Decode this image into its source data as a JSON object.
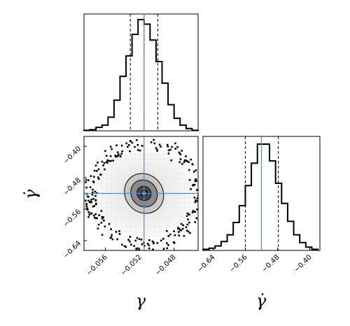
{
  "chart_data": [
    {
      "panel": "gamma-histogram",
      "type": "histogram",
      "xlim": [
        -0.0585,
        -0.0452
      ],
      "median": -0.0515,
      "quantile_16": -0.0531,
      "quantile_84": -0.0499,
      "truth": -0.0515,
      "bins": {
        "edges": [
          -0.0585,
          -0.0578,
          -0.0571,
          -0.0564,
          -0.0557,
          -0.055,
          -0.0543,
          -0.0536,
          -0.0529,
          -0.0522,
          -0.0515,
          -0.0508,
          -0.0501,
          -0.0494,
          -0.0487,
          -0.048,
          -0.0473,
          -0.0466,
          -0.0459,
          -0.0452
        ],
        "counts": [
          0.5,
          1,
          3,
          5,
          12,
          27,
          48,
          66,
          85,
          98,
          94,
          80,
          61,
          42,
          23,
          11,
          5,
          2,
          0.5
        ]
      }
    },
    {
      "panel": "gamma-gammadot-2d",
      "type": "heatmap",
      "xlim": [
        -0.0585,
        -0.0452
      ],
      "ylim": [
        -0.665,
        -0.375
      ],
      "xticks": [
        "−0.056",
        "−0.052",
        "−0.048"
      ],
      "yticks": [
        "−0.40",
        "−0.48",
        "−0.56",
        "−0.64"
      ],
      "xlabel": "γ",
      "ylabel": "γ̇",
      "center": [
        -0.0515,
        -0.52
      ],
      "contour_levels": [
        {
          "level": "1-sigma",
          "sx": 0.0007,
          "sy": 0.022
        },
        {
          "level": "2-sigma",
          "sx": 0.0013,
          "sy": 0.042
        },
        {
          "level": "3-sigma",
          "sx": 0.0019,
          "sy": 0.062
        }
      ],
      "truth": [
        -0.0515,
        -0.52
      ]
    },
    {
      "panel": "gammadot-histogram",
      "type": "histogram",
      "xlim": [
        -0.665,
        -0.375
      ],
      "xticks": [
        "−0.64",
        "−0.56",
        "−0.48",
        "−0.40"
      ],
      "xlabel": "γ̇",
      "median": -0.52,
      "quantile_16": -0.56,
      "quantile_84": -0.478,
      "truth": -0.52,
      "bins": {
        "edges": [
          -0.665,
          -0.65,
          -0.635,
          -0.62,
          -0.605,
          -0.59,
          -0.575,
          -0.56,
          -0.545,
          -0.53,
          -0.515,
          -0.5,
          -0.485,
          -0.47,
          -0.455,
          -0.44,
          -0.425,
          -0.41,
          -0.395,
          -0.38
        ],
        "counts": [
          1,
          2,
          4,
          8,
          14,
          25,
          40,
          58,
          78,
          95,
          95,
          80,
          60,
          42,
          26,
          14,
          7,
          3,
          1
        ]
      }
    }
  ],
  "colors": {
    "truth_line": "#4a90c8",
    "hist_line": "#000000",
    "quantile_line": "#000000",
    "density_dark": "#1a1a1a",
    "density_light": "#e6e6e6"
  }
}
